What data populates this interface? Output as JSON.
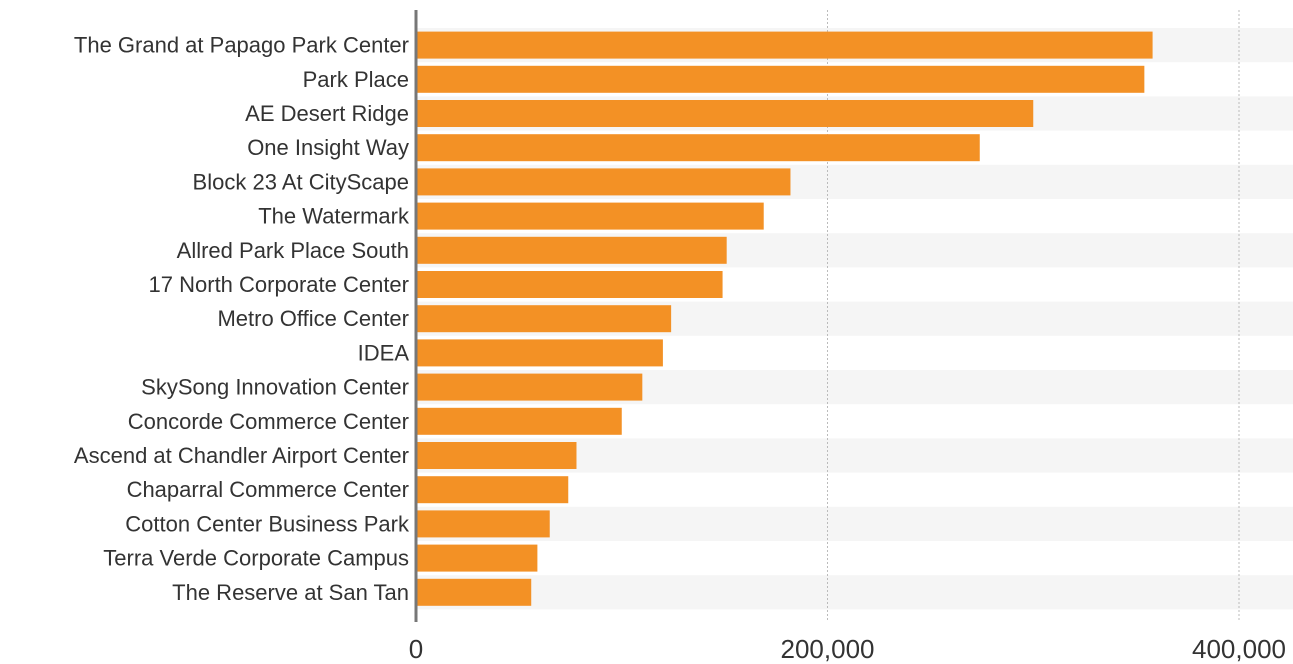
{
  "chart_data": {
    "type": "bar",
    "orientation": "horizontal",
    "categories": [
      "The Grand at Papago Park Center",
      "Park Place",
      "AE Desert Ridge",
      "One Insight Way",
      "Block 23 At CityScape",
      "The Watermark",
      "Allred Park Place South",
      "17 North Corporate Center",
      "Metro Office Center",
      "IDEA",
      "SkySong Innovation Center",
      "Concorde Commerce Center",
      "Ascend at Chandler Airport Center",
      "Chaparral Commerce Center",
      "Cotton Center Business Park",
      "Terra Verde Corporate Campus",
      "The Reserve at San Tan"
    ],
    "values": [
      358000,
      354000,
      300000,
      274000,
      182000,
      169000,
      151000,
      149000,
      124000,
      120000,
      110000,
      100000,
      78000,
      74000,
      65000,
      59000,
      56000
    ],
    "title": "",
    "xlabel": "",
    "ylabel": "",
    "xlim": [
      0,
      400000
    ],
    "ticks": [
      {
        "value": 0,
        "label": "0"
      },
      {
        "value": 200000,
        "label": "200,000"
      },
      {
        "value": 400000,
        "label": "400,000"
      }
    ],
    "grid": true,
    "bar_color": "#f39125",
    "stripe_color": "#f5f5f5",
    "grid_color": "#bbbbbb",
    "axis_color": "#777777"
  }
}
